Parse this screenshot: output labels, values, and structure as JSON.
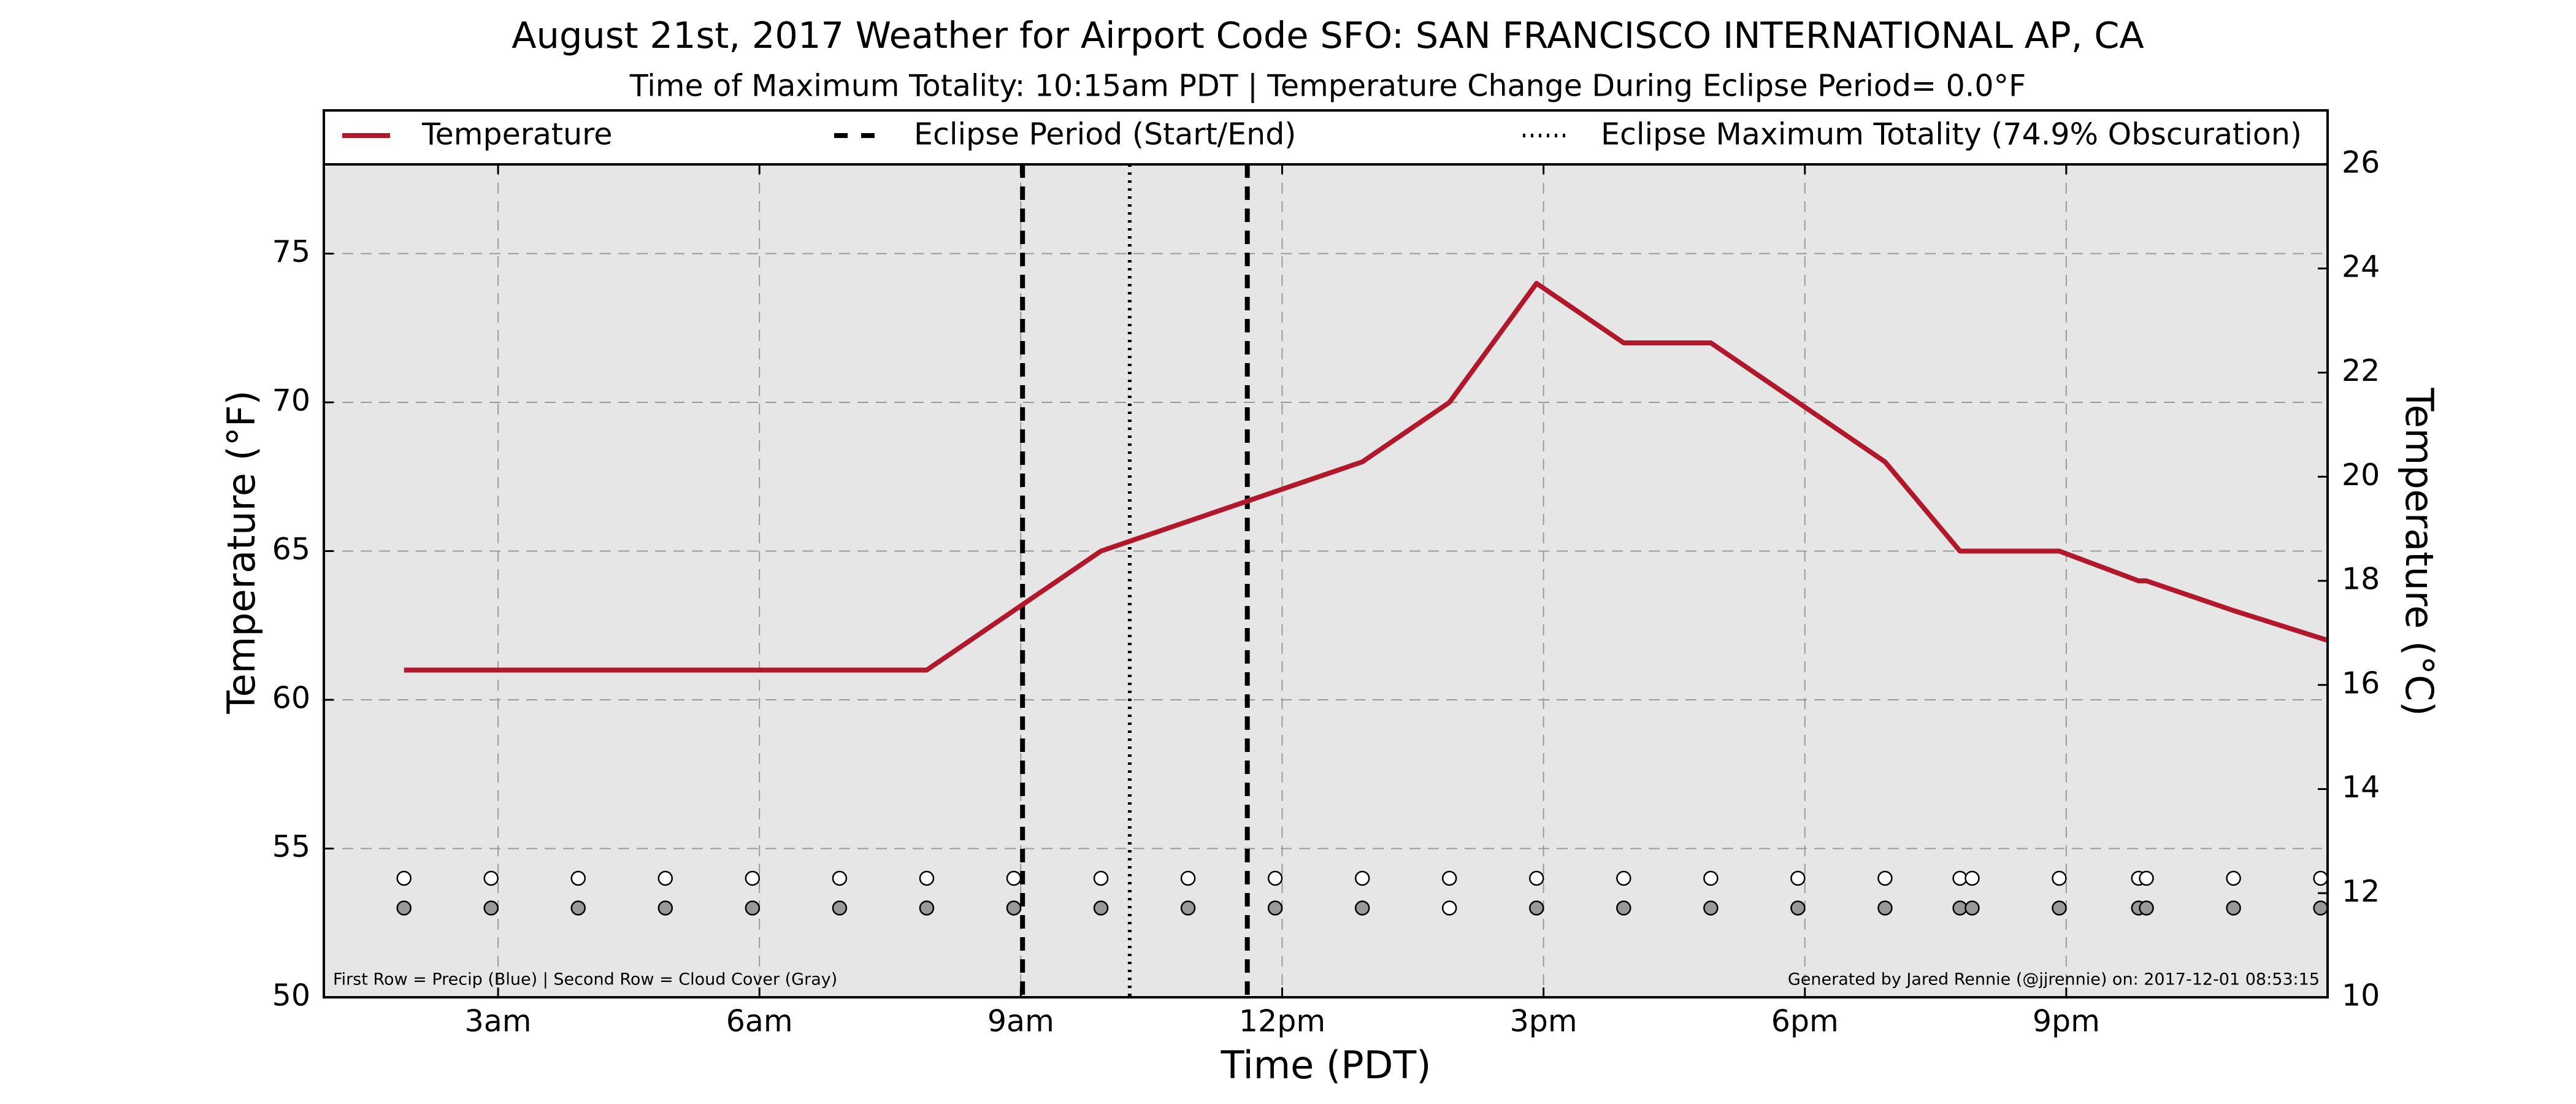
{
  "chart_data": {
    "type": "line",
    "title": "August 21st, 2017 Weather for Airport Code SFO: SAN FRANCISCO INTERNATIONAL AP, CA",
    "subtitle": "Time of Maximum Totality: 10:15am PDT | Temperature Change During Eclipse Period= 0.0°F",
    "xlabel": "Time (PDT)",
    "ylabel": "Temperature (°F)",
    "ylabel_right": "Temperature (°C)",
    "xlim": [
      1.0,
      24.0
    ],
    "ylim": [
      50,
      78
    ],
    "ylim_right": [
      10,
      26
    ],
    "x_ticks": [
      {
        "x": 3,
        "label": "3am"
      },
      {
        "x": 6,
        "label": "6am"
      },
      {
        "x": 9,
        "label": "9am"
      },
      {
        "x": 12,
        "label": "12pm"
      },
      {
        "x": 15,
        "label": "3pm"
      },
      {
        "x": 18,
        "label": "6pm"
      },
      {
        "x": 21,
        "label": "9pm"
      }
    ],
    "y_ticks": [
      50,
      55,
      60,
      65,
      70,
      75
    ],
    "y_ticks_right": [
      10,
      12,
      14,
      16,
      18,
      20,
      22,
      24,
      26
    ],
    "grid": true,
    "legend_placement": "top",
    "legend": [
      {
        "label": "Temperature",
        "style": "solid",
        "color": "#b2182b"
      },
      {
        "label": "Eclipse Period (Start/End)",
        "style": "dashed",
        "color": "#000000"
      },
      {
        "label": "Eclipse Maximum Totality (74.9% Obscuration)",
        "style": "dotted",
        "color": "#000000"
      }
    ],
    "series": [
      {
        "name": "Temperature",
        "color": "#b2182b",
        "x": [
          1.92,
          2.92,
          3.92,
          4.92,
          5.92,
          6.92,
          7.92,
          8.92,
          9.92,
          10.92,
          11.92,
          12.92,
          13.92,
          14.92,
          15.92,
          16.92,
          17.92,
          18.92,
          19.78,
          19.92,
          20.92,
          21.83,
          21.92,
          22.92,
          24.0
        ],
        "y": [
          61,
          61,
          61,
          61,
          61,
          61,
          61,
          63,
          65,
          66,
          67,
          68,
          70,
          74,
          72,
          72,
          70,
          68,
          65,
          65,
          65,
          64,
          64,
          63,
          62
        ]
      }
    ],
    "eclipse_start": 9.02,
    "eclipse_end": 11.6,
    "eclipse_max": 10.25,
    "precip_row": {
      "color": "#ffffff",
      "y": 54,
      "x": [
        1.92,
        2.92,
        3.92,
        4.92,
        5.92,
        6.92,
        7.92,
        8.92,
        9.92,
        10.92,
        11.92,
        12.92,
        13.92,
        14.92,
        15.92,
        16.92,
        17.92,
        18.92,
        19.78,
        19.92,
        20.92,
        21.83,
        21.92,
        22.92,
        23.92
      ]
    },
    "cloud_row": {
      "y": 53,
      "points": [
        {
          "x": 1.92,
          "color": "#999999"
        },
        {
          "x": 2.92,
          "color": "#999999"
        },
        {
          "x": 3.92,
          "color": "#999999"
        },
        {
          "x": 4.92,
          "color": "#999999"
        },
        {
          "x": 5.92,
          "color": "#999999"
        },
        {
          "x": 6.92,
          "color": "#999999"
        },
        {
          "x": 7.92,
          "color": "#999999"
        },
        {
          "x": 8.92,
          "color": "#999999"
        },
        {
          "x": 9.92,
          "color": "#999999"
        },
        {
          "x": 10.92,
          "color": "#999999"
        },
        {
          "x": 11.92,
          "color": "#999999"
        },
        {
          "x": 12.92,
          "color": "#999999"
        },
        {
          "x": 13.92,
          "color": "#ffffff"
        },
        {
          "x": 14.92,
          "color": "#999999"
        },
        {
          "x": 15.92,
          "color": "#999999"
        },
        {
          "x": 16.92,
          "color": "#999999"
        },
        {
          "x": 17.92,
          "color": "#999999"
        },
        {
          "x": 18.92,
          "color": "#999999"
        },
        {
          "x": 19.78,
          "color": "#999999"
        },
        {
          "x": 19.92,
          "color": "#999999"
        },
        {
          "x": 20.92,
          "color": "#999999"
        },
        {
          "x": 21.83,
          "color": "#999999"
        },
        {
          "x": 21.92,
          "color": "#999999"
        },
        {
          "x": 22.92,
          "color": "#999999"
        },
        {
          "x": 23.92,
          "color": "#999999"
        }
      ]
    },
    "footnote_left": "First Row = Precip (Blue) | Second Row = Cloud Cover (Gray)",
    "footnote_right": "Generated by Jared Rennie (@jjrennie) on: 2017-12-01 08:53:15",
    "plot_background": "#e6e6e6"
  }
}
